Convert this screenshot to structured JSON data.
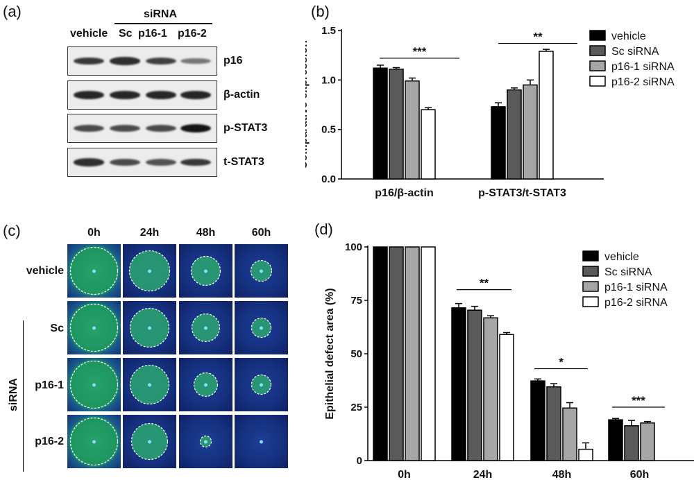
{
  "panels": {
    "a": "(a)",
    "b": "(b)",
    "c": "(c)",
    "d": "(d)"
  },
  "blot": {
    "group_label": "siRNA",
    "lanes": [
      "vehicle",
      "Sc",
      "p16-1",
      "p16-2"
    ],
    "rows": [
      {
        "label": "p16",
        "intensity": [
          0.8,
          0.85,
          0.75,
          0.45
        ]
      },
      {
        "label": "β-actin",
        "intensity": [
          0.9,
          0.9,
          0.9,
          0.9
        ]
      },
      {
        "label": "p-STAT3",
        "intensity": [
          0.7,
          0.7,
          0.7,
          1.0
        ]
      },
      {
        "label": "t-STAT3",
        "intensity": [
          0.85,
          0.7,
          0.65,
          0.8
        ]
      }
    ]
  },
  "wound": {
    "times": [
      "0h",
      "24h",
      "48h",
      "60h"
    ],
    "rows": [
      "vehicle",
      "Sc",
      "p16-1",
      "p16-2"
    ],
    "group_label": "siRNA",
    "defect_fraction": [
      [
        1.0,
        0.72,
        0.37,
        0.19
      ],
      [
        1.0,
        0.7,
        0.35,
        0.16
      ],
      [
        1.0,
        0.67,
        0.25,
        0.18
      ],
      [
        1.0,
        0.59,
        0.05,
        0.0
      ]
    ]
  },
  "chart_data": [
    {
      "type": "bar",
      "panel": "(b)",
      "categories": [
        "p16/β-actin",
        "p-STAT3/t-STAT3"
      ],
      "series": [
        {
          "name": "vehicle",
          "values": [
            1.12,
            0.73
          ],
          "errors": [
            0.03,
            0.04
          ],
          "color": "#000000"
        },
        {
          "name": "Sc siRNA",
          "values": [
            1.11,
            0.9
          ],
          "errors": [
            0.015,
            0.02
          ],
          "color": "#5a5a5a"
        },
        {
          "name": "p16-1 siRNA",
          "values": [
            0.99,
            0.95
          ],
          "errors": [
            0.03,
            0.05
          ],
          "color": "#a6a6a6"
        },
        {
          "name": "p16-2 siRNA",
          "values": [
            0.7,
            1.29
          ],
          "errors": [
            0.02,
            0.02
          ],
          "color": "#ffffff"
        }
      ],
      "ylabel": "Comparative expression",
      "ylim": [
        0,
        1.5
      ],
      "yticks": [
        "0.0",
        "0.5",
        "1.0",
        "1.5"
      ],
      "significance": [
        "***",
        "**"
      ],
      "legend_position": "right"
    },
    {
      "type": "bar",
      "panel": "(d)",
      "categories": [
        "0h",
        "24h",
        "48h",
        "60h"
      ],
      "series": [
        {
          "name": "vehicle",
          "values": [
            100,
            71.5,
            37.3,
            19.1
          ],
          "errors": [
            0,
            2.0,
            0.9,
            0.6
          ],
          "color": "#000000"
        },
        {
          "name": "Sc siRNA",
          "values": [
            100,
            70.4,
            34.5,
            16.3
          ],
          "errors": [
            0,
            1.8,
            1.5,
            2.5
          ],
          "color": "#5a5a5a"
        },
        {
          "name": "p16-1 siRNA",
          "values": [
            100,
            66.8,
            24.6,
            17.6
          ],
          "errors": [
            0,
            1.0,
            2.5,
            0.7
          ],
          "color": "#a6a6a6"
        },
        {
          "name": "p16-2 siRNA",
          "values": [
            100,
            59.0,
            5.3,
            0
          ],
          "errors": [
            0,
            0.9,
            3.0,
            0
          ],
          "color": "#ffffff"
        }
      ],
      "ylabel": "Epithelial defect area (%)",
      "ylim": [
        0,
        100
      ],
      "yticks": [
        "0",
        "25",
        "50",
        "75",
        "100"
      ],
      "significance": [
        "**",
        "*",
        "***"
      ],
      "legend_position": "right"
    }
  ]
}
